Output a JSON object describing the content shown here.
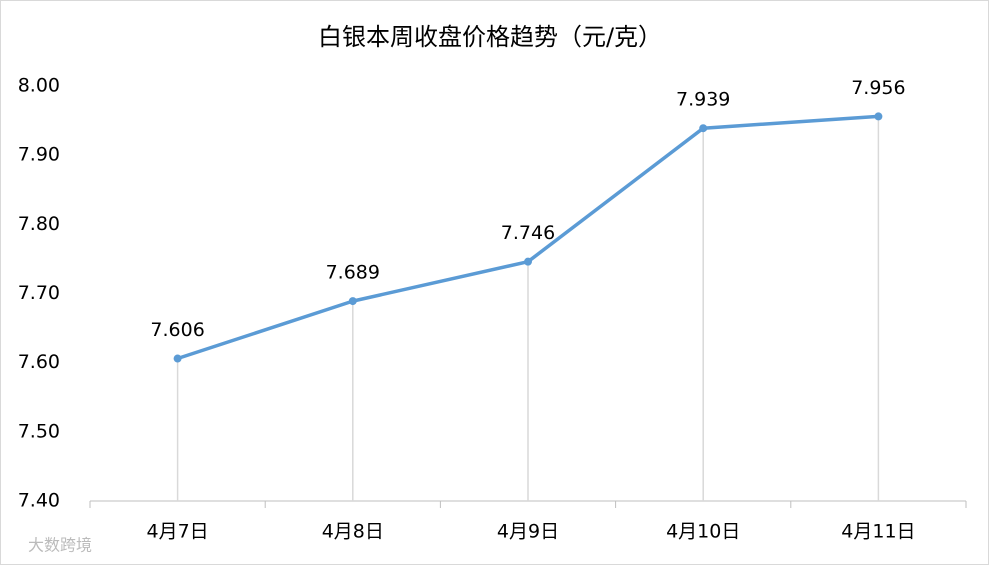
{
  "chart_data": {
    "type": "line",
    "title": "白银本周收盘价格趋势（元/克）",
    "categories": [
      "4月7日",
      "4月8日",
      "4月9日",
      "4月10日",
      "4月11日"
    ],
    "values": [
      7.606,
      7.689,
      7.746,
      7.939,
      7.956
    ],
    "color": "#5b9bd5",
    "ylim": [
      7.4,
      8.0
    ],
    "yticks": [
      {
        "value": 7.4,
        "label": "7.40"
      },
      {
        "value": 7.5,
        "label": "7.50"
      },
      {
        "value": 7.6,
        "label": "7.60"
      },
      {
        "value": 7.7,
        "label": "7.70"
      },
      {
        "value": 7.8,
        "label": "7.80"
      },
      {
        "value": 7.9,
        "label": "7.90"
      },
      {
        "value": 8.0,
        "label": "8.00"
      }
    ],
    "drop_lines": true,
    "grid": false,
    "watermark": "大数跨境"
  }
}
